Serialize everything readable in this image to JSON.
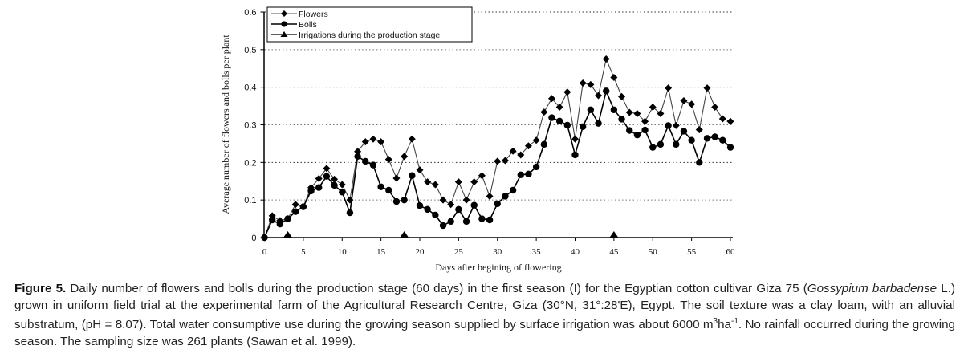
{
  "chart_data": {
    "type": "line",
    "title": "",
    "xlabel": "Days after begining of flowering",
    "ylabel": "Average number of flowers and bolls per plant",
    "xlim": [
      0,
      60
    ],
    "ylim": [
      0,
      0.6
    ],
    "xticks": [
      0,
      5,
      10,
      15,
      20,
      25,
      30,
      35,
      40,
      45,
      50,
      55,
      60
    ],
    "xtick_labels": [
      "0",
      "5",
      "10",
      "15",
      "20",
      "25",
      "30",
      "35",
      "40",
      "45",
      "50",
      "55",
      "60"
    ],
    "yticks": [
      0,
      0.1,
      0.2,
      0.3,
      0.4,
      0.5,
      0.6
    ],
    "ytick_labels": [
      "0",
      "0.1",
      "0.2",
      "0.3",
      "0.4",
      "0.5",
      "0.6"
    ],
    "grid": "horizontal dotted",
    "legend_position": "top-left",
    "x": [
      0,
      1,
      2,
      3,
      4,
      5,
      6,
      7,
      8,
      9,
      10,
      11,
      12,
      13,
      14,
      15,
      16,
      17,
      18,
      19,
      20,
      21,
      22,
      23,
      24,
      25,
      26,
      27,
      28,
      29,
      30,
      31,
      32,
      33,
      34,
      35,
      36,
      37,
      38,
      39,
      40,
      41,
      42,
      43,
      44,
      45,
      46,
      47,
      48,
      49,
      50,
      51,
      52,
      53,
      54,
      55,
      56,
      57,
      58,
      59,
      60
    ],
    "series": [
      {
        "name": "Flowers",
        "marker": "diamond",
        "values": [
          0,
          0.058,
          0.045,
          0.05,
          0.088,
          0.082,
          0.133,
          0.157,
          0.184,
          0.155,
          0.141,
          0.1,
          0.229,
          0.255,
          0.262,
          0.255,
          0.208,
          0.158,
          0.216,
          0.262,
          0.18,
          0.148,
          0.141,
          0.1,
          0.088,
          0.148,
          0.1,
          0.148,
          0.165,
          0.11,
          0.203,
          0.205,
          0.23,
          0.22,
          0.244,
          0.259,
          0.334,
          0.37,
          0.347,
          0.387,
          0.262,
          0.411,
          0.407,
          0.378,
          0.475,
          0.426,
          0.375,
          0.333,
          0.33,
          0.309,
          0.347,
          0.33,
          0.398,
          0.298,
          0.364,
          0.355,
          0.287,
          0.398,
          0.347,
          0.316,
          0.309
        ]
      },
      {
        "name": "Bolls",
        "marker": "circle",
        "values": [
          0,
          0.047,
          0.036,
          0.05,
          0.069,
          0.082,
          0.124,
          0.133,
          0.163,
          0.139,
          0.121,
          0.066,
          0.216,
          0.203,
          0.193,
          0.135,
          0.126,
          0.096,
          0.1,
          0.165,
          0.085,
          0.075,
          0.06,
          0.032,
          0.043,
          0.075,
          0.043,
          0.086,
          0.05,
          0.047,
          0.09,
          0.11,
          0.126,
          0.167,
          0.169,
          0.188,
          0.248,
          0.319,
          0.31,
          0.299,
          0.22,
          0.295,
          0.34,
          0.304,
          0.39,
          0.34,
          0.315,
          0.285,
          0.273,
          0.286,
          0.24,
          0.248,
          0.298,
          0.248,
          0.283,
          0.259,
          0.2,
          0.264,
          0.268,
          0.259,
          0.24
        ]
      },
      {
        "name": "Irrigations during the production stage",
        "marker": "triangle",
        "days": [
          3,
          18,
          45
        ],
        "values": [
          0,
          0,
          0
        ]
      }
    ]
  },
  "caption": {
    "label": "Figure 5.",
    "part1": " Daily number of flowers and bolls during the production stage (60 days) in the first season (I) for the Egyptian cotton cultivar Giza 75 (",
    "species": "Gossypium barbadense",
    "part2": " L.) grown in uniform field trial at the experimental farm of the Agricultural Research Centre, Giza (30°N, 31°:28'E), Egypt. The soil texture was a clay loam, with an alluvial substratum, (pH = 8.07). Total water consumptive use during the growing season supplied by surface irrigation was about 6000 m",
    "sup1": "3",
    "part3": "ha",
    "sup2": "-1",
    "part4": ". No rainfall occurred during the growing season. The sampling size was 261 plants (Sawan et al. 1999)."
  }
}
